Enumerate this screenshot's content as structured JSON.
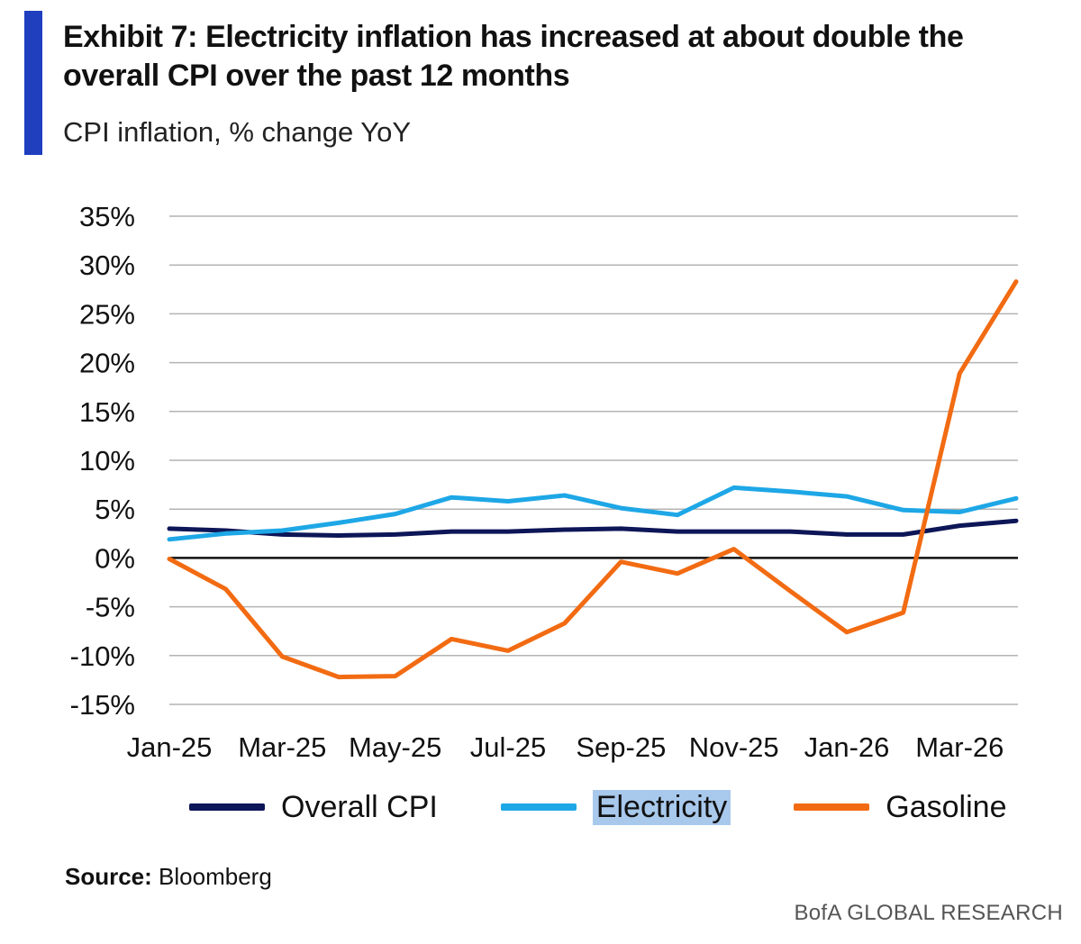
{
  "header": {
    "title": "Exhibit 7: Electricity inflation has increased at about double the overall CPI over the past 12 months",
    "subtitle": "CPI inflation, % change YoY",
    "accent_color": "#1f3fbf"
  },
  "source": {
    "label": "Source:",
    "text": "Bloomberg"
  },
  "footer": {
    "brand": "BofA GLOBAL RESEARCH"
  },
  "chart_data": {
    "type": "line",
    "title": "Exhibit 7: Electricity inflation has increased at about double the overall CPI over the past 12 months",
    "subtitle": "CPI inflation, % change YoY",
    "xlabel": "",
    "ylabel": "",
    "x": [
      "Jan-25",
      "Feb-25",
      "Mar-25",
      "Apr-25",
      "May-25",
      "Jun-25",
      "Jul-25",
      "Aug-25",
      "Sep-25",
      "Oct-25",
      "Nov-25",
      "Dec-25",
      "Jan-26",
      "Feb-26",
      "Mar-26",
      "Apr-26"
    ],
    "x_tick_labels": [
      "Jan-25",
      "Mar-25",
      "May-25",
      "Jul-25",
      "Sep-25",
      "Nov-25",
      "Jan-26",
      "Mar-26"
    ],
    "ylim": [
      -15,
      35
    ],
    "y_ticks": [
      35,
      30,
      25,
      20,
      15,
      10,
      5,
      0,
      -5,
      -10,
      -15
    ],
    "y_tick_labels": [
      "35%",
      "30%",
      "25%",
      "20%",
      "15%",
      "10%",
      "5%",
      "0%",
      "-5%",
      "-10%",
      "-15%"
    ],
    "grid": true,
    "legend_position": "bottom",
    "series": [
      {
        "name": "Overall CPI",
        "color": "#0d1657",
        "values": [
          3.0,
          2.8,
          2.4,
          2.3,
          2.4,
          2.7,
          2.7,
          2.9,
          3.0,
          2.7,
          2.7,
          2.7,
          2.4,
          2.4,
          3.3,
          3.8
        ]
      },
      {
        "name": "Electricity",
        "color": "#1ea7e6",
        "values": [
          1.9,
          2.5,
          2.8,
          3.6,
          4.5,
          6.2,
          5.8,
          6.4,
          5.1,
          4.4,
          7.2,
          6.8,
          6.3,
          4.9,
          4.7,
          6.1
        ]
      },
      {
        "name": "Gasoline",
        "color": "#f26b12",
        "values": [
          -0.1,
          -3.2,
          -10.1,
          -12.2,
          -12.1,
          -8.3,
          -9.5,
          -6.7,
          -0.4,
          -1.6,
          0.9,
          -3.4,
          -7.6,
          -5.6,
          18.9,
          28.3
        ]
      }
    ]
  }
}
